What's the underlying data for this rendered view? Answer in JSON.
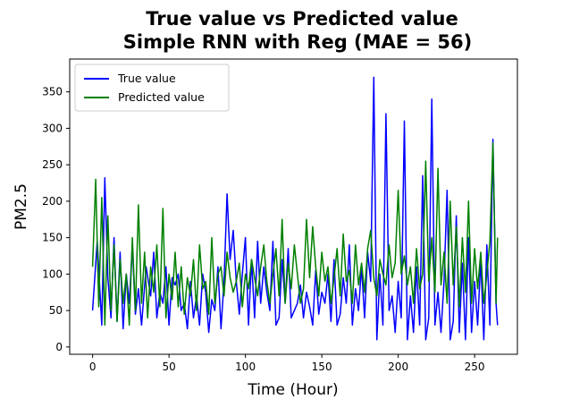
{
  "chart_data": {
    "type": "line",
    "title": [
      "True value vs Predicted value",
      "Simple RNN with Reg (MAE = 56)"
    ],
    "xlabel": "Time (Hour)",
    "ylabel": "PM2.5",
    "xlim": [
      -15,
      278
    ],
    "ylim": [
      -10,
      395
    ],
    "xticks": [
      0,
      50,
      100,
      150,
      200,
      250
    ],
    "yticks": [
      0,
      50,
      100,
      150,
      200,
      250,
      300,
      350
    ],
    "grid": false,
    "legend_position": "top-left",
    "series": [
      {
        "name": "True value",
        "color": "#0000ff",
        "x": [
          0,
          3,
          6,
          8,
          10,
          12,
          14,
          16,
          18,
          20,
          22,
          24,
          26,
          28,
          30,
          32,
          35,
          38,
          40,
          42,
          44,
          46,
          48,
          50,
          52,
          54,
          56,
          58,
          60,
          62,
          64,
          66,
          68,
          70,
          72,
          74,
          76,
          78,
          80,
          82,
          84,
          86,
          88,
          90,
          92,
          94,
          96,
          98,
          100,
          102,
          104,
          106,
          108,
          110,
          112,
          114,
          116,
          118,
          120,
          122,
          124,
          126,
          128,
          130,
          132,
          134,
          136,
          138,
          140,
          142,
          144,
          146,
          148,
          150,
          152,
          154,
          156,
          158,
          160,
          162,
          164,
          166,
          168,
          170,
          172,
          174,
          176,
          178,
          180,
          182,
          184,
          186,
          188,
          190,
          192,
          194,
          196,
          198,
          200,
          202,
          204,
          206,
          208,
          210,
          212,
          214,
          216,
          218,
          220,
          222,
          224,
          226,
          228,
          230,
          232,
          234,
          236,
          238,
          240,
          242,
          244,
          246,
          248,
          250,
          252,
          254,
          256,
          258,
          260,
          262,
          264,
          265
        ],
        "values": [
          50,
          145,
          30,
          232,
          95,
          40,
          150,
          35,
          130,
          25,
          100,
          60,
          140,
          45,
          80,
          30,
          110,
          70,
          130,
          40,
          75,
          60,
          110,
          30,
          95,
          85,
          100,
          50,
          60,
          25,
          90,
          40,
          70,
          30,
          100,
          75,
          20,
          65,
          50,
          110,
          25,
          90,
          210,
          120,
          160,
          90,
          45,
          100,
          150,
          30,
          120,
          40,
          145,
          60,
          110,
          75,
          50,
          145,
          30,
          40,
          120,
          60,
          135,
          40,
          50,
          60,
          85,
          40,
          75,
          55,
          30,
          105,
          45,
          75,
          60,
          100,
          35,
          120,
          30,
          45,
          95,
          60,
          140,
          30,
          80,
          50,
          110,
          40,
          130,
          90,
          370,
          10,
          100,
          30,
          320,
          50,
          70,
          20,
          90,
          40,
          310,
          10,
          70,
          20,
          110,
          30,
          235,
          10,
          40,
          340,
          30,
          75,
          20,
          90,
          215,
          10,
          35,
          180,
          20,
          115,
          10,
          150,
          20,
          90,
          30,
          120,
          10,
          140,
          30,
          285,
          60,
          30
        ]
      },
      {
        "name": "Predicted value",
        "color": "#008000",
        "x": [
          0,
          2,
          4,
          6,
          8,
          10,
          12,
          14,
          16,
          18,
          20,
          22,
          24,
          26,
          28,
          30,
          32,
          34,
          36,
          38,
          40,
          42,
          44,
          46,
          48,
          50,
          52,
          54,
          56,
          58,
          60,
          62,
          64,
          66,
          68,
          70,
          72,
          74,
          76,
          78,
          80,
          82,
          84,
          86,
          88,
          90,
          92,
          94,
          96,
          98,
          100,
          102,
          104,
          106,
          108,
          110,
          112,
          114,
          116,
          118,
          120,
          122,
          124,
          126,
          128,
          130,
          132,
          134,
          136,
          138,
          140,
          142,
          144,
          146,
          148,
          150,
          152,
          154,
          156,
          158,
          160,
          162,
          164,
          166,
          168,
          170,
          172,
          174,
          176,
          178,
          180,
          182,
          184,
          186,
          188,
          190,
          192,
          194,
          196,
          198,
          200,
          202,
          204,
          206,
          208,
          210,
          212,
          214,
          216,
          218,
          220,
          222,
          224,
          226,
          228,
          230,
          232,
          234,
          236,
          238,
          240,
          242,
          244,
          246,
          248,
          250,
          252,
          254,
          256,
          258,
          260,
          262,
          264,
          265
        ],
        "values": [
          110,
          230,
          55,
          205,
          30,
          180,
          50,
          140,
          35,
          120,
          60,
          100,
          30,
          150,
          50,
          195,
          60,
          130,
          40,
          110,
          75,
          140,
          55,
          190,
          40,
          100,
          65,
          130,
          55,
          110,
          45,
          95,
          70,
          120,
          50,
          140,
          80,
          90,
          45,
          150,
          60,
          100,
          110,
          70,
          130,
          95,
          75,
          90,
          115,
          55,
          100,
          80,
          120,
          95,
          70,
          110,
          140,
          90,
          60,
          100,
          135,
          70,
          175,
          60,
          115,
          80,
          140,
          100,
          60,
          80,
          175,
          95,
          165,
          110,
          70,
          130,
          90,
          110,
          60,
          95,
          135,
          70,
          155,
          90,
          105,
          60,
          140,
          85,
          115,
          75,
          135,
          160,
          95,
          70,
          120,
          100,
          85,
          140,
          95,
          115,
          215,
          100,
          125,
          85,
          110,
          60,
          135,
          80,
          100,
          255,
          90,
          150,
          75,
          245,
          85,
          130,
          60,
          200,
          85,
          165,
          55,
          150,
          75,
          200,
          60,
          135,
          80,
          130,
          60,
          100,
          145,
          280,
          60,
          150
        ]
      }
    ]
  }
}
